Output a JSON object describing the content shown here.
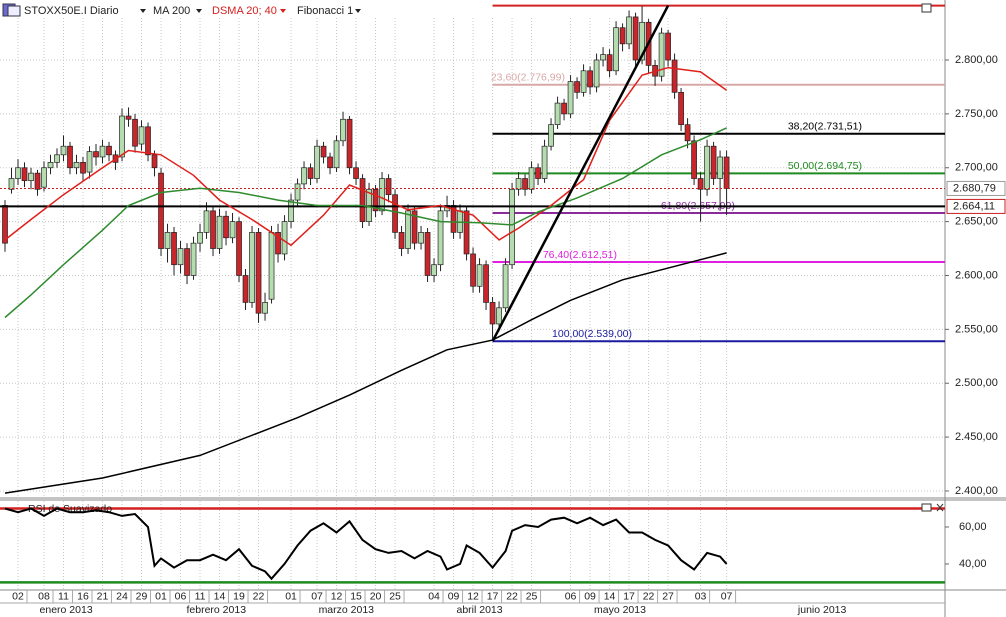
{
  "chart_data": [
    {
      "type": "candlestick",
      "title": "STOXX50E.I Diario",
      "indicators": [
        "MA 200",
        "DSMA 20; 40",
        "Fibonacci 1"
      ],
      "up_color": "#b5dcae",
      "down_color": "#c8262b",
      "grid": true,
      "xlim": [
        -0.77,
        144.6
      ],
      "ylim": [
        2394.4,
        2855.7
      ],
      "yticks": [
        {
          "value": 2400,
          "label": "2.400,00"
        },
        {
          "value": 2450,
          "label": "2.450,00"
        },
        {
          "value": 2500,
          "label": "2.500,00"
        },
        {
          "value": 2550,
          "label": "2.550,00"
        },
        {
          "value": 2600,
          "label": "2.600,00"
        },
        {
          "value": 2650,
          "label": "2.650,00"
        },
        {
          "value": 2700,
          "label": "2.700,00"
        },
        {
          "value": 2750,
          "label": "2.750,00"
        },
        {
          "value": 2800,
          "label": "2.800,00"
        }
      ],
      "xticks": [
        {
          "value": 2,
          "label": "02"
        },
        {
          "value": 6,
          "label": "08"
        },
        {
          "value": 9,
          "label": "11"
        },
        {
          "value": 12,
          "label": "16"
        },
        {
          "value": 15,
          "label": "21"
        },
        {
          "value": 18,
          "label": "24"
        },
        {
          "value": 21,
          "label": "29"
        },
        {
          "value": 24,
          "label": "01"
        },
        {
          "value": 27,
          "label": "06"
        },
        {
          "value": 30,
          "label": "11"
        },
        {
          "value": 33,
          "label": "14"
        },
        {
          "value": 36,
          "label": "19"
        },
        {
          "value": 39,
          "label": "22"
        },
        {
          "value": 44,
          "label": "01"
        },
        {
          "value": 48,
          "label": "07"
        },
        {
          "value": 51,
          "label": "12"
        },
        {
          "value": 54,
          "label": "15"
        },
        {
          "value": 57,
          "label": "20"
        },
        {
          "value": 60,
          "label": "25"
        },
        {
          "value": 66,
          "label": "04"
        },
        {
          "value": 69,
          "label": "09"
        },
        {
          "value": 72,
          "label": "12"
        },
        {
          "value": 75,
          "label": "17"
        },
        {
          "value": 78,
          "label": "22"
        },
        {
          "value": 81,
          "label": "25"
        },
        {
          "value": 87,
          "label": "06"
        },
        {
          "value": 90,
          "label": "09"
        },
        {
          "value": 93,
          "label": "14"
        },
        {
          "value": 96,
          "label": "17"
        },
        {
          "value": 99,
          "label": "22"
        },
        {
          "value": 102,
          "label": "27"
        },
        {
          "value": 107,
          "label": "03"
        },
        {
          "value": 111,
          "label": "07"
        }
      ],
      "month_labels": [
        {
          "value": 9.4,
          "label": "enero 2013"
        },
        {
          "value": 32.5,
          "label": "febrero 2013"
        },
        {
          "value": 52.5,
          "label": "marzo 2013"
        },
        {
          "value": 73,
          "label": "abril 2013"
        },
        {
          "value": 94.6,
          "label": "mayo 2013"
        },
        {
          "value": 125.7,
          "label": "junio 2013"
        }
      ],
      "ohlc": [
        [
          2665,
          2670,
          2622,
          2630
        ],
        [
          2680,
          2700,
          2676,
          2690
        ],
        [
          2690,
          2708,
          2684,
          2700
        ],
        [
          2700,
          2705,
          2682,
          2688
        ],
        [
          2688,
          2700,
          2680,
          2695
        ],
        [
          2695,
          2698,
          2674,
          2680
        ],
        [
          2682,
          2706,
          2678,
          2700
        ],
        [
          2700,
          2712,
          2694,
          2705
        ],
        [
          2705,
          2718,
          2700,
          2712
        ],
        [
          2712,
          2730,
          2706,
          2720
        ],
        [
          2720,
          2724,
          2694,
          2700
        ],
        [
          2700,
          2712,
          2694,
          2705
        ],
        [
          2705,
          2710,
          2688,
          2695
        ],
        [
          2696,
          2720,
          2690,
          2715
        ],
        [
          2715,
          2722,
          2702,
          2710
        ],
        [
          2710,
          2726,
          2704,
          2720
        ],
        [
          2720,
          2724,
          2706,
          2712
        ],
        [
          2712,
          2716,
          2698,
          2705
        ],
        [
          2710,
          2755,
          2706,
          2748
        ],
        [
          2748,
          2756,
          2738,
          2745
        ],
        [
          2745,
          2750,
          2714,
          2720
        ],
        [
          2722,
          2744,
          2716,
          2738
        ],
        [
          2738,
          2742,
          2706,
          2712
        ],
        [
          2712,
          2716,
          2692,
          2700
        ],
        [
          2695,
          2700,
          2618,
          2625
        ],
        [
          2625,
          2648,
          2612,
          2640
        ],
        [
          2640,
          2645,
          2600,
          2610
        ],
        [
          2610,
          2632,
          2602,
          2625
        ],
        [
          2625,
          2630,
          2592,
          2600
        ],
        [
          2600,
          2636,
          2596,
          2630
        ],
        [
          2630,
          2648,
          2622,
          2640
        ],
        [
          2640,
          2668,
          2634,
          2660
        ],
        [
          2660,
          2664,
          2618,
          2625
        ],
        [
          2625,
          2662,
          2620,
          2655
        ],
        [
          2655,
          2660,
          2628,
          2635
        ],
        [
          2635,
          2658,
          2630,
          2650
        ],
        [
          2650,
          2654,
          2594,
          2600
        ],
        [
          2600,
          2606,
          2568,
          2575
        ],
        [
          2575,
          2646,
          2570,
          2640
        ],
        [
          2640,
          2644,
          2556,
          2565
        ],
        [
          2565,
          2584,
          2558,
          2575
        ],
        [
          2578,
          2646,
          2574,
          2640
        ],
        [
          2640,
          2648,
          2612,
          2620
        ],
        [
          2620,
          2656,
          2614,
          2650
        ],
        [
          2650,
          2676,
          2644,
          2670
        ],
        [
          2670,
          2690,
          2664,
          2685
        ],
        [
          2685,
          2706,
          2680,
          2700
        ],
        [
          2700,
          2704,
          2684,
          2690
        ],
        [
          2690,
          2726,
          2686,
          2720
        ],
        [
          2720,
          2724,
          2704,
          2710
        ],
        [
          2710,
          2714,
          2694,
          2700
        ],
        [
          2700,
          2730,
          2696,
          2725
        ],
        [
          2725,
          2752,
          2720,
          2745
        ],
        [
          2745,
          2748,
          2694,
          2700
        ],
        [
          2700,
          2706,
          2684,
          2690
        ],
        [
          2690,
          2694,
          2644,
          2650
        ],
        [
          2650,
          2686,
          2646,
          2680
        ],
        [
          2680,
          2684,
          2654,
          2660
        ],
        [
          2660,
          2696,
          2656,
          2690
        ],
        [
          2690,
          2694,
          2668,
          2675
        ],
        [
          2675,
          2680,
          2634,
          2640
        ],
        [
          2640,
          2646,
          2618,
          2625
        ],
        [
          2625,
          2666,
          2620,
          2660
        ],
        [
          2660,
          2664,
          2624,
          2630
        ],
        [
          2630,
          2646,
          2624,
          2640
        ],
        [
          2640,
          2644,
          2594,
          2600
        ],
        [
          2600,
          2616,
          2594,
          2610
        ],
        [
          2610,
          2666,
          2604,
          2660
        ],
        [
          2660,
          2674,
          2654,
          2665
        ],
        [
          2665,
          2670,
          2634,
          2640
        ],
        [
          2640,
          2666,
          2634,
          2660
        ],
        [
          2660,
          2664,
          2614,
          2620
        ],
        [
          2620,
          2626,
          2584,
          2590
        ],
        [
          2590,
          2616,
          2584,
          2610
        ],
        [
          2610,
          2614,
          2568,
          2575
        ],
        [
          2575,
          2580,
          2540,
          2555
        ],
        [
          2555,
          2576,
          2548,
          2570
        ],
        [
          2570,
          2616,
          2566,
          2610
        ],
        [
          2610,
          2686,
          2606,
          2680
        ],
        [
          2680,
          2696,
          2674,
          2690
        ],
        [
          2690,
          2694,
          2674,
          2680
        ],
        [
          2680,
          2706,
          2676,
          2700
        ],
        [
          2700,
          2704,
          2684,
          2690
        ],
        [
          2690,
          2726,
          2686,
          2720
        ],
        [
          2720,
          2746,
          2716,
          2740
        ],
        [
          2740,
          2766,
          2736,
          2760
        ],
        [
          2760,
          2764,
          2744,
          2750
        ],
        [
          2750,
          2786,
          2746,
          2780
        ],
        [
          2780,
          2784,
          2764,
          2770
        ],
        [
          2770,
          2796,
          2766,
          2790
        ],
        [
          2790,
          2794,
          2768,
          2775
        ],
        [
          2775,
          2806,
          2770,
          2800
        ],
        [
          2800,
          2812,
          2794,
          2805
        ],
        [
          2805,
          2810,
          2784,
          2790
        ],
        [
          2790,
          2836,
          2786,
          2830
        ],
        [
          2830,
          2834,
          2808,
          2815
        ],
        [
          2815,
          2846,
          2810,
          2840
        ],
        [
          2840,
          2844,
          2794,
          2800
        ],
        [
          2800,
          2850,
          2796,
          2835
        ],
        [
          2835,
          2838,
          2788,
          2795
        ],
        [
          2795,
          2800,
          2776,
          2785
        ],
        [
          2785,
          2830,
          2780,
          2825
        ],
        [
          2825,
          2828,
          2794,
          2800
        ],
        [
          2800,
          2806,
          2764,
          2770
        ],
        [
          2770,
          2774,
          2734,
          2740
        ],
        [
          2740,
          2746,
          2718,
          2725
        ],
        [
          2725,
          2730,
          2684,
          2690
        ],
        [
          2690,
          2696,
          2650,
          2680
        ],
        [
          2680,
          2726,
          2674,
          2720
        ],
        [
          2720,
          2724,
          2684,
          2690
        ],
        [
          2690,
          2716,
          2660,
          2710
        ],
        [
          2710,
          2716,
          2656,
          2680.79
        ]
      ],
      "series": [
        {
          "color": "#000000",
          "x": [
            0,
            15,
            30,
            45,
            53,
            61,
            68,
            75,
            81,
            87,
            95,
            104,
            111
          ],
          "values": [
            2398,
            2412,
            2433,
            2468,
            2489,
            2512,
            2531,
            2540,
            2559,
            2577,
            2596,
            2610,
            2621
          ]
        },
        {
          "color": "#e0201b",
          "x": [
            0,
            4,
            9,
            15,
            19,
            24,
            29,
            33,
            38,
            44,
            49,
            53,
            58,
            62,
            67,
            72,
            76,
            79,
            84,
            89,
            93,
            98,
            102,
            107,
            111
          ],
          "values": [
            2633,
            2652,
            2675,
            2700,
            2716,
            2712,
            2693,
            2670,
            2652,
            2628,
            2656,
            2684,
            2672,
            2661,
            2665,
            2656,
            2633,
            2644,
            2665,
            2689,
            2744,
            2786,
            2793,
            2789,
            2772
          ]
        },
        {
          "color": "#2e8b2e",
          "x": [
            0,
            4,
            9,
            15,
            19,
            24,
            30,
            36,
            42,
            48,
            55,
            61,
            67,
            73,
            78,
            82,
            88,
            95,
            101,
            107,
            111
          ],
          "values": [
            2561,
            2582,
            2610,
            2642,
            2665,
            2677,
            2681,
            2677,
            2670,
            2665,
            2665,
            2658,
            2650,
            2649,
            2647,
            2659,
            2672,
            2690,
            2712,
            2726,
            2737
          ]
        }
      ],
      "fib_start": 75,
      "fib_levels": [
        {
          "value": 2850.5,
          "color": "#d42020"
        },
        {
          "value": 2776.99,
          "label": "23,60(2.776,99)",
          "color": "#d8a8a8"
        },
        {
          "value": 2731.51,
          "label": "38,20(2.731,51)",
          "color": "#000000"
        },
        {
          "value": 2694.75,
          "label": "50,00(2.694,75)",
          "color": "#1f8a1f"
        },
        {
          "value": 2657.99,
          "label": "61,80(2.657,99)",
          "color": "#8b2a9b"
        },
        {
          "value": 2612.51,
          "label": "76,40(2.612,51)",
          "color": "#e020e0"
        },
        {
          "value": 2539,
          "label": "100,00(2.539,00)",
          "color": "#1a1aa0"
        }
      ],
      "trend_line": {
        "x": [
          75,
          102
        ],
        "values": [
          2539,
          2850.5
        ]
      },
      "price_lines": [
        {
          "value": 2680.79,
          "label": "2.680,79",
          "color": "#c81e1e",
          "style": "dotted"
        },
        {
          "value": 2664.11,
          "label": "2.664,11",
          "color": "#000000",
          "style": "solid"
        }
      ]
    },
    {
      "type": "line",
      "title": "RSI de Suavizado",
      "color": "#000000",
      "xlim": [
        -0.77,
        144.6
      ],
      "ylim": [
        25.9,
        74.6
      ],
      "yticks": [
        {
          "value": 40,
          "label": "40,00"
        },
        {
          "value": 60,
          "label": "60,00"
        }
      ],
      "levels": [
        {
          "value": 70,
          "color": "#d42020"
        },
        {
          "value": 30,
          "color": "#1f8a1f"
        }
      ],
      "x": [
        0,
        2,
        4,
        6,
        8,
        10,
        12,
        14,
        16,
        18,
        20,
        22,
        23,
        24,
        26,
        28,
        30,
        32,
        34,
        36,
        38,
        40,
        41,
        43,
        45,
        47,
        49,
        51,
        53,
        55,
        57,
        59,
        61,
        63,
        65,
        67,
        68,
        70,
        71,
        73,
        75,
        77,
        78,
        80,
        82,
        84,
        86,
        88,
        90,
        92,
        94,
        96,
        98,
        100,
        102,
        104,
        106,
        108,
        110,
        111
      ],
      "values": [
        70,
        68,
        70,
        66,
        70,
        68,
        68,
        69,
        68,
        66,
        67,
        60,
        39,
        43,
        38,
        42,
        42,
        45,
        42,
        48,
        39,
        36,
        32,
        40,
        50,
        58,
        62,
        57,
        63,
        53,
        48,
        46,
        47,
        43,
        47,
        44,
        37,
        40,
        50,
        46,
        38,
        47,
        58,
        61,
        60,
        64,
        65,
        62,
        65,
        61,
        64,
        57,
        57,
        53,
        50,
        42,
        37,
        46,
        44,
        40
      ]
    }
  ]
}
